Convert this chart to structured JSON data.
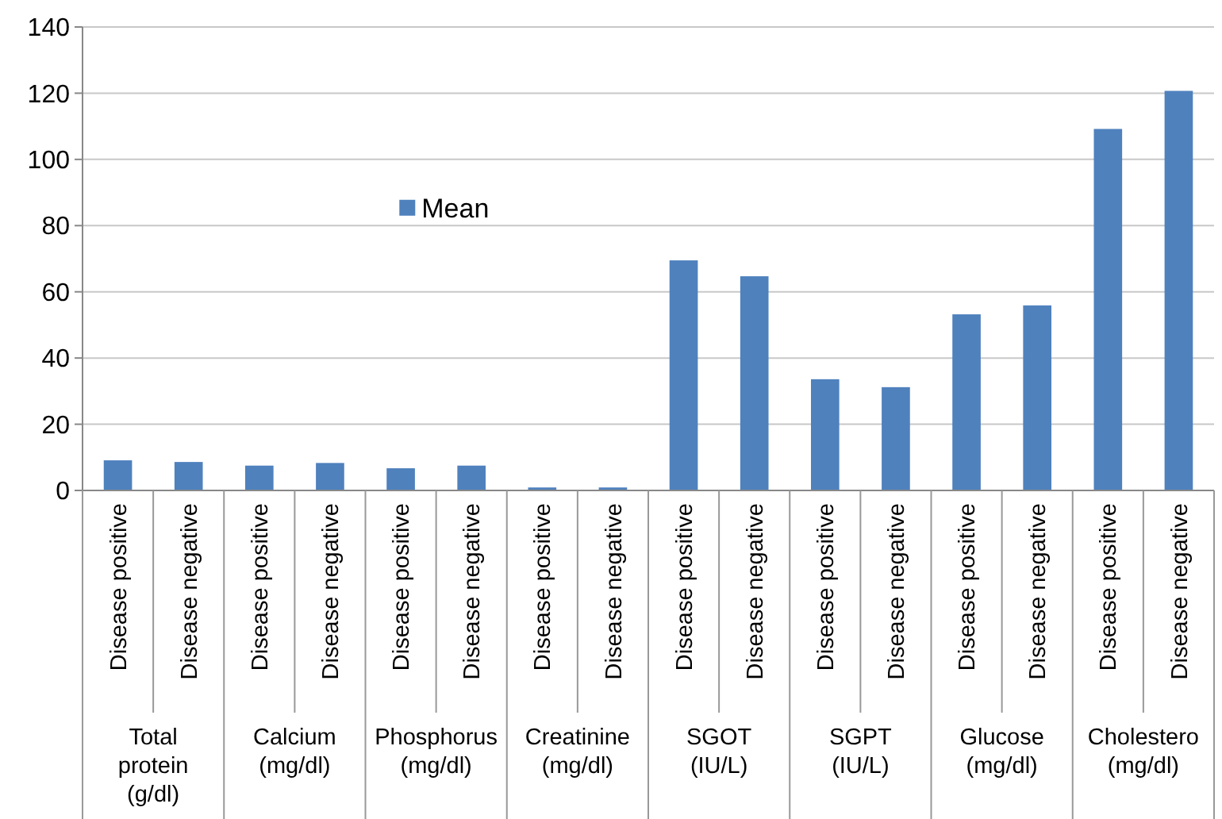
{
  "chart_data": {
    "type": "bar",
    "categories": [
      "Disease positive",
      "Disease negative",
      "Disease positive",
      "Disease negative",
      "Disease positive",
      "Disease negative",
      "Disease positive",
      "Disease negative",
      "Disease positive",
      "Disease negative",
      "Disease positive",
      "Disease negative",
      "Disease positive",
      "Disease negative",
      "Disease positive",
      "Disease negative"
    ],
    "series": [
      {
        "name": "Mean",
        "color": "#4f81bd",
        "values": [
          9.1,
          8.6,
          7.5,
          8.3,
          6.7,
          7.5,
          0.9,
          0.9,
          69.5,
          64.7,
          33.6,
          31.2,
          53.2,
          55.9,
          109.2,
          120.7
        ]
      }
    ],
    "annotations": [
      "Total protein (g/dl)",
      "Calcium (mg/dl)",
      "Phosphorus (mg/dl)",
      "Creatinine (mg/dl)",
      "SGOT (IU/L)",
      "SGPT (IU/L)",
      "Glucose (mg/dl)",
      "Cholestero (mg/dl)"
    ],
    "ylim": [
      0,
      140
    ],
    "yticks": [
      0,
      20,
      40,
      60,
      80,
      100,
      120,
      140
    ],
    "grid": "y",
    "legend": "top left"
  }
}
